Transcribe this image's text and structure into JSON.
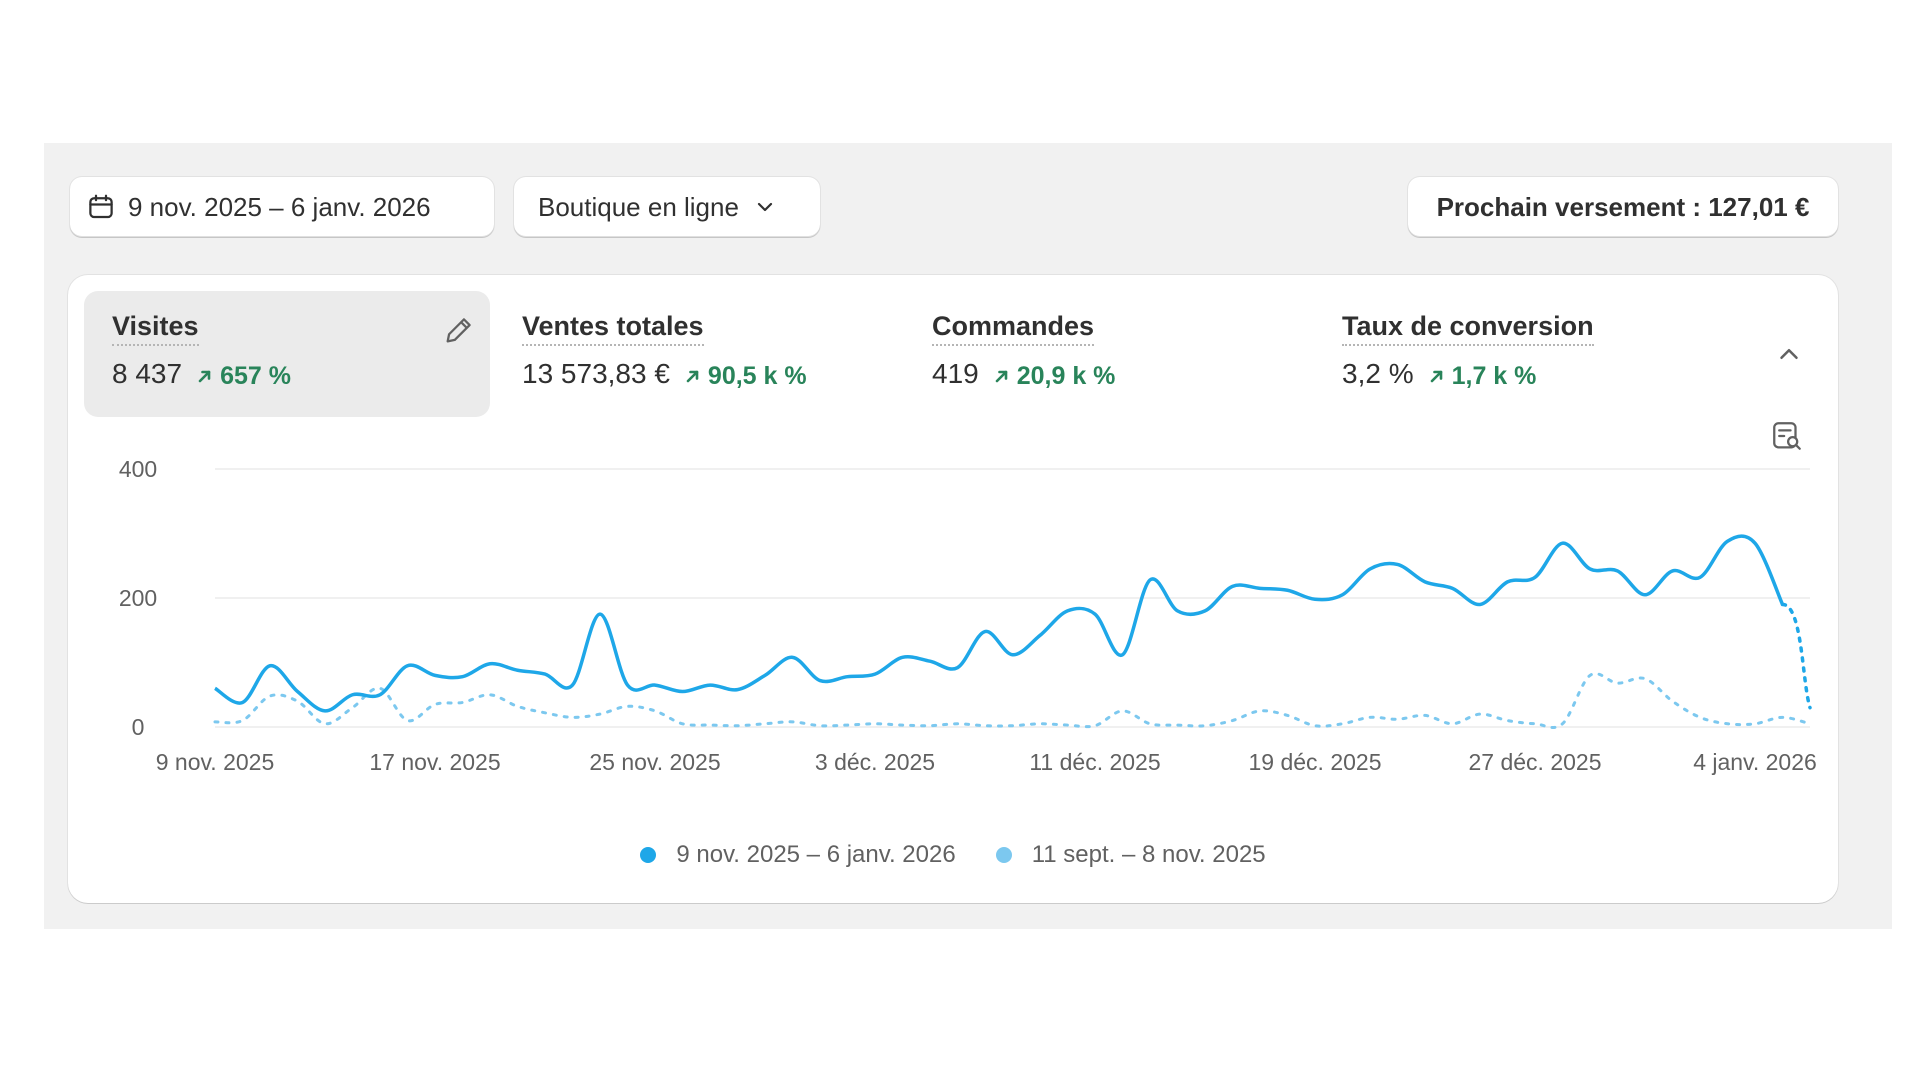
{
  "toolbar": {
    "date_range": "9 nov. 2025 – 6 janv. 2026",
    "channel": "Boutique en ligne",
    "payout": "Prochain versement : 127,01 €"
  },
  "metrics": [
    {
      "label": "Visites",
      "value": "8 437",
      "delta": "657 %",
      "active": true
    },
    {
      "label": "Ventes totales",
      "value": "13 573,83 €",
      "delta": "90,5 k %"
    },
    {
      "label": "Commandes",
      "value": "419",
      "delta": "20,9 k %"
    },
    {
      "label": "Taux de conversion",
      "value": "3,2 %",
      "delta": "1,7 k %"
    }
  ],
  "colors": {
    "current": "#1ea7e8",
    "previous": "#7cc8ef",
    "positive": "#29845a"
  },
  "chart_data": {
    "type": "line",
    "ylim": [
      0,
      400
    ],
    "yticks": [
      "0",
      "200",
      "400"
    ],
    "xticks": [
      "9 nov. 2025",
      "17 nov. 2025",
      "25 nov. 2025",
      "3 déc. 2025",
      "11 déc. 2025",
      "19 déc. 2025",
      "27 déc. 2025",
      "4 janv. 2026"
    ],
    "x": [
      "2025-11-09",
      "2025-11-10",
      "2025-11-11",
      "2025-11-12",
      "2025-11-13",
      "2025-11-14",
      "2025-11-15",
      "2025-11-16",
      "2025-11-17",
      "2025-11-18",
      "2025-11-19",
      "2025-11-20",
      "2025-11-21",
      "2025-11-22",
      "2025-11-23",
      "2025-11-24",
      "2025-11-25",
      "2025-11-26",
      "2025-11-27",
      "2025-11-28",
      "2025-11-29",
      "2025-11-30",
      "2025-12-01",
      "2025-12-02",
      "2025-12-03",
      "2025-12-04",
      "2025-12-05",
      "2025-12-06",
      "2025-12-07",
      "2025-12-08",
      "2025-12-09",
      "2025-12-10",
      "2025-12-11",
      "2025-12-12",
      "2025-12-13",
      "2025-12-14",
      "2025-12-15",
      "2025-12-16",
      "2025-12-17",
      "2025-12-18",
      "2025-12-19",
      "2025-12-20",
      "2025-12-21",
      "2025-12-22",
      "2025-12-23",
      "2025-12-24",
      "2025-12-25",
      "2025-12-26",
      "2025-12-27",
      "2025-12-28",
      "2025-12-29",
      "2025-12-30",
      "2025-12-31",
      "2026-01-01",
      "2026-01-02",
      "2026-01-03",
      "2026-01-04",
      "2026-01-05",
      "2026-01-06"
    ],
    "series": [
      {
        "name": "9 nov. 2025 – 6 janv. 2026",
        "style": "solid",
        "values": [
          60,
          38,
          95,
          55,
          25,
          50,
          50,
          95,
          80,
          78,
          98,
          88,
          82,
          65,
          175,
          65,
          65,
          55,
          65,
          58,
          80,
          108,
          72,
          78,
          82,
          108,
          102,
          92,
          148,
          112,
          142,
          180,
          175,
          112,
          228,
          180,
          180,
          218,
          215,
          212,
          198,
          205,
          245,
          252,
          225,
          215,
          190,
          225,
          232,
          285,
          245,
          242,
          205,
          242,
          232,
          288,
          285,
          190,
          30
        ]
      },
      {
        "name": "11 sept. – 8 nov. 2025",
        "style": "dotted",
        "values": [
          8,
          10,
          48,
          40,
          5,
          30,
          60,
          10,
          35,
          38,
          50,
          32,
          22,
          15,
          20,
          32,
          25,
          5,
          3,
          2,
          5,
          8,
          2,
          3,
          5,
          3,
          2,
          5,
          2,
          2,
          5,
          3,
          2,
          25,
          5,
          3,
          2,
          10,
          25,
          18,
          2,
          5,
          15,
          12,
          18,
          5,
          20,
          10,
          5,
          5,
          80,
          68,
          75,
          40,
          15,
          5,
          5,
          15,
          5
        ]
      }
    ],
    "legend": [
      "9 nov. 2025 – 6 janv. 2026",
      "11 sept. – 8 nov. 2025"
    ]
  }
}
